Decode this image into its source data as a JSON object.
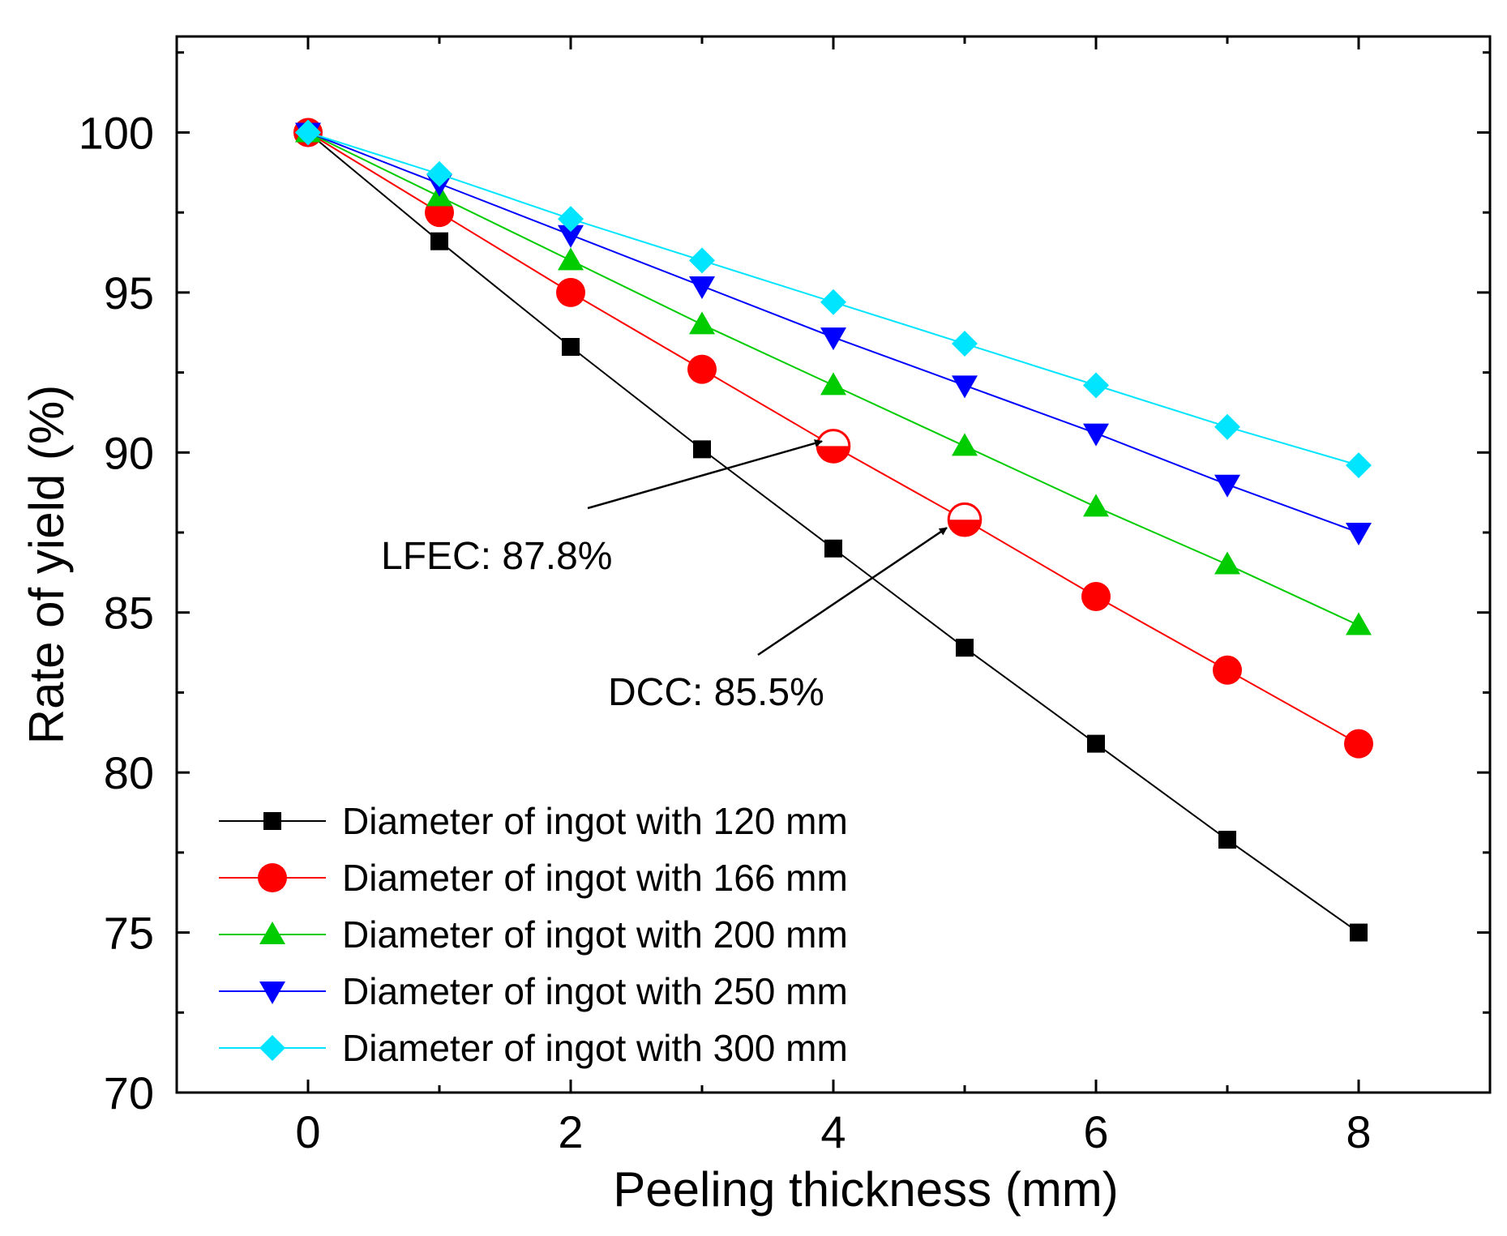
{
  "chart_data": {
    "type": "line",
    "title": "",
    "xlabel": "Peeling thickness (mm)",
    "ylabel": "Rate of yield (%)",
    "xlim": [
      -1,
      9
    ],
    "ylim": [
      70,
      103
    ],
    "xticks": [
      0,
      2,
      4,
      6,
      8
    ],
    "yticks": [
      70,
      75,
      80,
      85,
      90,
      95,
      100
    ],
    "legend_position": "bottom-left",
    "x": [
      0,
      1,
      2,
      3,
      4,
      5,
      6,
      7,
      8
    ],
    "series": [
      {
        "name": "Diameter of ingot with 120 mm",
        "color": "#000000",
        "marker": "square",
        "values": [
          100,
          96.6,
          93.3,
          90.1,
          87.0,
          83.9,
          80.9,
          77.9,
          75.0
        ]
      },
      {
        "name": "Diameter of ingot with 166 mm",
        "color": "#ff0000",
        "marker": "circle",
        "values": [
          100,
          97.5,
          95.0,
          92.6,
          90.2,
          87.9,
          85.5,
          83.2,
          80.9
        ]
      },
      {
        "name": "Diameter of ingot with 200 mm",
        "color": "#00cc00",
        "marker": "triangle-up",
        "values": [
          100,
          98.0,
          96.0,
          94.0,
          92.1,
          90.2,
          88.3,
          86.5,
          84.6
        ]
      },
      {
        "name": "Diameter of ingot with 250 mm",
        "color": "#0000ff",
        "marker": "triangle-down",
        "values": [
          100,
          98.4,
          96.8,
          95.2,
          93.6,
          92.1,
          90.6,
          89.0,
          87.5
        ]
      },
      {
        "name": "Diameter of ingot with 300 mm",
        "color": "#00e5ff",
        "marker": "diamond",
        "values": [
          100,
          98.7,
          97.3,
          96.0,
          94.7,
          93.4,
          92.1,
          90.8,
          89.6
        ]
      }
    ],
    "highlighted_points": [
      {
        "series": "Diameter of ingot with 166 mm",
        "x": 4,
        "y": 90.2
      },
      {
        "series": "Diameter of ingot with 166 mm",
        "x": 5,
        "y": 87.9
      }
    ],
    "annotations": [
      {
        "text": "LFEC: 87.8%",
        "target_x": 4,
        "target_y": 90.2
      },
      {
        "text": "DCC: 85.5%",
        "target_x": 5,
        "target_y": 87.9
      }
    ]
  }
}
